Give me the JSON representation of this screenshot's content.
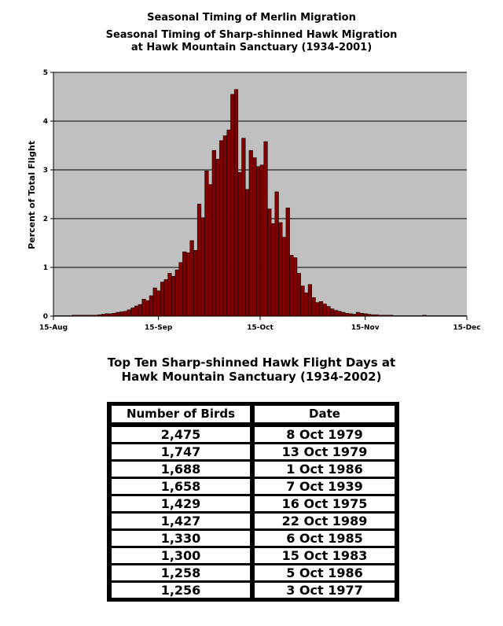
{
  "page": {
    "clipped_title": "Seasonal Timing of Merlin Migration",
    "chart_title_line1": "Seasonal Timing of Sharp-shinned Hawk Migration",
    "chart_title_line2": "at Hawk Mountain Sanctuary (1934-2001)",
    "table_title_line1": "Top Ten Sharp-shinned Hawk Flight Days at",
    "table_title_line2": "Hawk Mountain Sanctuary (1934-2002)"
  },
  "colors": {
    "plot_background": "#c0c0c0",
    "bar_fill": "#800000",
    "bar_stroke": "#000000"
  },
  "chart_data": {
    "type": "bar",
    "title": "Seasonal Timing of Sharp-shinned Hawk Migration at Hawk Mountain Sanctuary (1934-2001)",
    "xlabel": "",
    "ylabel": "Percent of Total Flight",
    "ylim": [
      0,
      5
    ],
    "yticks": [
      0,
      1,
      2,
      3,
      4,
      5
    ],
    "x_start_day": 0,
    "x_end_day": 122,
    "xticks": [
      {
        "day": 0,
        "label": "15-Aug"
      },
      {
        "day": 31,
        "label": "15-Sep"
      },
      {
        "day": 61,
        "label": "15-Oct"
      },
      {
        "day": 92,
        "label": "15-Nov"
      },
      {
        "day": 122,
        "label": "15-Dec"
      }
    ],
    "grid": true,
    "values": [
      0.01,
      0.01,
      0.01,
      0.01,
      0.01,
      0.02,
      0.02,
      0.02,
      0.02,
      0.02,
      0.02,
      0.02,
      0.03,
      0.04,
      0.05,
      0.05,
      0.06,
      0.08,
      0.09,
      0.1,
      0.13,
      0.17,
      0.21,
      0.24,
      0.35,
      0.32,
      0.42,
      0.58,
      0.52,
      0.7,
      0.75,
      0.88,
      0.82,
      0.95,
      1.1,
      1.32,
      1.3,
      1.55,
      1.35,
      2.3,
      2.02,
      2.98,
      2.7,
      3.4,
      3.22,
      3.6,
      3.7,
      3.82,
      4.55,
      4.65,
      2.95,
      3.65,
      2.6,
      3.4,
      3.25,
      3.07,
      3.1,
      3.58,
      2.2,
      1.9,
      2.55,
      1.92,
      1.62,
      2.22,
      1.25,
      1.2,
      0.88,
      0.62,
      0.48,
      0.65,
      0.38,
      0.28,
      0.3,
      0.25,
      0.2,
      0.15,
      0.12,
      0.1,
      0.08,
      0.06,
      0.05,
      0.04,
      0.08,
      0.06,
      0.05,
      0.04,
      0.03,
      0.03,
      0.02,
      0.02,
      0.02,
      0.02,
      0.01,
      0.01,
      0.01,
      0.01,
      0.01,
      0.01,
      0.01,
      0.01,
      0.02,
      0.01,
      0.01,
      0.01,
      0.01,
      0.01,
      0.01,
      0.01,
      0.01,
      0.01,
      0.01,
      0.01
    ]
  },
  "table": {
    "headers": {
      "birds": "Number of Birds",
      "date": "Date"
    },
    "rows": [
      {
        "birds": "2,475",
        "date": "8 Oct 1979"
      },
      {
        "birds": "1,747",
        "date": "13 Oct 1979"
      },
      {
        "birds": "1,688",
        "date": "1 Oct 1986"
      },
      {
        "birds": "1,658",
        "date": "7 Oct 1939"
      },
      {
        "birds": "1,429",
        "date": "16 Oct 1975"
      },
      {
        "birds": "1,427",
        "date": "22 Oct 1989"
      },
      {
        "birds": "1,330",
        "date": "6 Oct 1985"
      },
      {
        "birds": "1,300",
        "date": "15 Oct 1983"
      },
      {
        "birds": "1,258",
        "date": "5 Oct 1986"
      },
      {
        "birds": "1,256",
        "date": "3 Oct 1977"
      }
    ]
  }
}
